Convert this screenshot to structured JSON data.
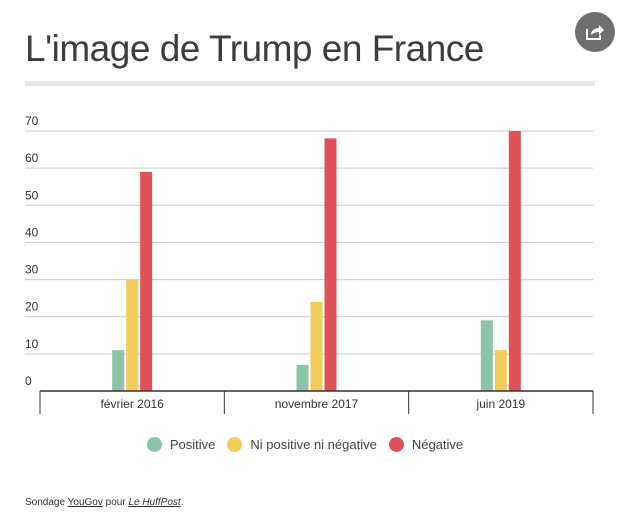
{
  "title": "L'image de Trump en France",
  "share": {
    "icon": "share-icon"
  },
  "chart_data": {
    "type": "bar",
    "categories": [
      "février 2016",
      "novembre 2017",
      "juin 2019"
    ],
    "series": [
      {
        "name": "Positive",
        "color": "#8dc3a7",
        "values": [
          11,
          7,
          19
        ]
      },
      {
        "name": "Ni positive ni négative",
        "color": "#f2cd5e",
        "values": [
          30,
          24,
          11
        ]
      },
      {
        "name": "Négative",
        "color": "#e05159",
        "values": [
          59,
          68,
          70
        ]
      }
    ],
    "yticks": [
      0,
      10,
      20,
      30,
      40,
      50,
      60,
      70
    ],
    "ylim": [
      0,
      70
    ],
    "grid": true,
    "legend_position": "bottom-center",
    "xlabel": "",
    "ylabel": ""
  },
  "source": {
    "prefix": "Sondage ",
    "pollster": "YouGov",
    "middle": " pour ",
    "outlet": "Le HuffPost",
    "suffix": "."
  }
}
